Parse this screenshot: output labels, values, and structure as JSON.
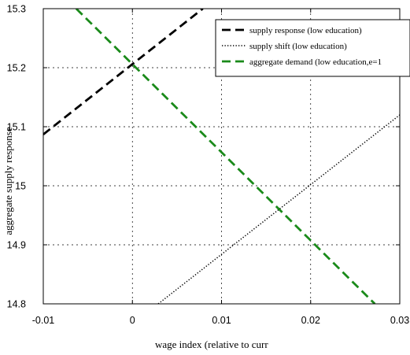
{
  "chart_data": {
    "type": "line",
    "xlabel": "wage index (relative to curr",
    "ylabel": "aggregate supply response",
    "xlim": [
      -0.01,
      0.03
    ],
    "ylim": [
      14.8,
      15.3
    ],
    "xticks": [
      -0.01,
      0,
      0.01,
      0.02,
      0.03
    ],
    "xtick_labels": [
      "-0.01",
      "0",
      "0.01",
      "0.02",
      "0.03"
    ],
    "yticks": [
      14.8,
      14.9,
      15,
      15.1,
      15.2,
      15.3
    ],
    "ytick_labels": [
      "14.8",
      "14.9",
      "15",
      "15.1",
      "15.2",
      "15.3"
    ],
    "grid": true,
    "legend_position": "top-right",
    "series": [
      {
        "name": "supply response (low education)",
        "color": "#000000",
        "style": "dashed",
        "x": [
          -0.01,
          0.0079
        ],
        "y": [
          15.087,
          15.3
        ]
      },
      {
        "name": "supply shift (low education)",
        "color": "#000000",
        "style": "dotted",
        "x": [
          0.0029,
          0.03
        ],
        "y": [
          14.8,
          15.12
        ]
      },
      {
        "name": "aggregate demand (low education,e=1",
        "color": "#1a8a1a",
        "style": "dashed",
        "x": [
          -0.0063,
          0.0272
        ],
        "y": [
          15.3,
          14.8
        ]
      }
    ]
  }
}
